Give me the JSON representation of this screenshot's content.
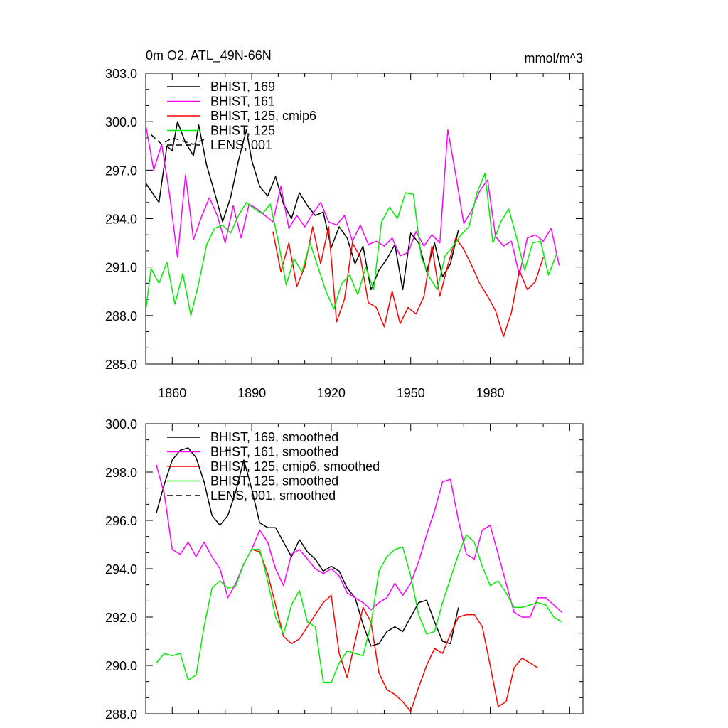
{
  "chart_data": [
    {
      "type": "line",
      "title": "0m O2, ATL_49N-66N",
      "units": "mmol/m^3",
      "ylim": [
        285,
        303
      ],
      "yticks": [
        "303.0",
        "300.0",
        "297.0",
        "294.0",
        "291.0",
        "288.0",
        "285.0"
      ],
      "ytick_values": [
        303,
        300,
        297,
        294,
        291,
        288,
        285
      ],
      "xlim": [
        1850,
        2015
      ],
      "xticks": [
        "1860",
        "1890",
        "1920",
        "1950",
        "1980"
      ],
      "xtick_values": [
        1860,
        1890,
        1920,
        1950,
        1980
      ],
      "legend": [
        {
          "label": "BHIST, 169",
          "color": "#000000",
          "dash": "solid"
        },
        {
          "label": "BHIST, 161",
          "color": "#ff00ff",
          "dash": "solid"
        },
        {
          "label": "BHIST, 125, cmip6",
          "color": "#ff0000",
          "dash": "solid"
        },
        {
          "label": "BHIST, 125",
          "color": "#00ee00",
          "dash": "solid"
        },
        {
          "label": "LENS, 001",
          "color": "#000000",
          "dash": "dashed"
        }
      ],
      "series": [
        {
          "name": "BHIST, 169",
          "color": "#000000",
          "x": [
            1850,
            1855,
            1858,
            1860,
            1862,
            1865,
            1868,
            1870,
            1873,
            1876,
            1879,
            1882,
            1885,
            1888,
            1890,
            1893,
            1896,
            1899,
            1902,
            1905,
            1908,
            1911,
            1914,
            1917,
            1920,
            1923,
            1926,
            1929,
            1932,
            1935,
            1938,
            1941,
            1944,
            1947,
            1950,
            1953,
            1956,
            1959,
            1962,
            1965,
            1968
          ],
          "y": [
            296.2,
            295.0,
            298.5,
            298.2,
            300.0,
            298.7,
            297.9,
            299.8,
            297.3,
            295.6,
            293.8,
            295.3,
            297.6,
            299.5,
            297.6,
            296.0,
            295.4,
            296.6,
            294.9,
            294.0,
            295.6,
            294.8,
            294.2,
            294.4,
            292.2,
            293.5,
            292.8,
            291.2,
            292.3,
            289.6,
            290.8,
            291.5,
            292.4,
            289.6,
            293.1,
            292.5,
            290.7,
            292.5,
            290.4,
            291.2,
            293.3
          ]
        },
        {
          "name": "BHIST, 161",
          "color": "#ff00ff",
          "x": [
            1850,
            1853,
            1856,
            1859,
            1862,
            1865,
            1868,
            1871,
            1874,
            1877,
            1880,
            1883,
            1886,
            1889,
            1892,
            1895,
            1898,
            1901,
            1904,
            1907,
            1910,
            1913,
            1916,
            1919,
            1922,
            1925,
            1928,
            1931,
            1934,
            1937,
            1940,
            1943,
            1946,
            1949,
            1952,
            1955,
            1958,
            1961,
            1964,
            1967,
            1970,
            1973,
            1976,
            1979,
            1982,
            1985,
            1988,
            1991,
            1994,
            1997,
            2000,
            2003,
            2006
          ],
          "y": [
            299.8,
            297.0,
            298.6,
            295.5,
            291.6,
            296.7,
            292.7,
            294.1,
            295.3,
            294.2,
            292.5,
            294.8,
            292.8,
            294.9,
            294.6,
            294.2,
            293.8,
            296.0,
            293.4,
            294.2,
            293.5,
            294.3,
            295.0,
            293.8,
            293.6,
            294.2,
            292.6,
            293.6,
            292.4,
            292.6,
            292.3,
            292.8,
            291.7,
            291.9,
            293.2,
            292.3,
            293.0,
            292.5,
            299.5,
            296.7,
            293.7,
            294.5,
            295.7,
            296.4,
            292.9,
            292.3,
            292.6,
            290.5,
            292.8,
            293.0,
            292.6,
            293.4,
            291.1
          ]
        },
        {
          "name": "BHIST, 125, cmip6",
          "color": "#ff0000",
          "x": [
            1898,
            1901,
            1904,
            1907,
            1910,
            1913,
            1916,
            1919,
            1922,
            1925,
            1928,
            1931,
            1934,
            1937,
            1940,
            1943,
            1946,
            1949,
            1952,
            1955,
            1958,
            1961,
            1964,
            1967,
            1970,
            1973,
            1976,
            1979,
            1982,
            1985,
            1988,
            1991,
            1994,
            1997,
            2000
          ],
          "y": [
            293.2,
            290.7,
            292.5,
            289.8,
            291.0,
            293.5,
            291.2,
            293.5,
            287.6,
            289.0,
            292.5,
            291.6,
            288.8,
            288.5,
            287.3,
            289.5,
            287.5,
            288.5,
            288.1,
            289.2,
            292.3,
            289.2,
            291.1,
            292.8,
            292.1,
            291.1,
            290.0,
            289.2,
            288.3,
            286.7,
            288.2,
            290.8,
            289.6,
            290.1,
            291.6
          ]
        },
        {
          "name": "BHIST, 125",
          "color": "#00ee00",
          "x": [
            1850,
            1852,
            1855,
            1858,
            1861,
            1864,
            1867,
            1870,
            1873,
            1876,
            1879,
            1882,
            1885,
            1888,
            1891,
            1894,
            1897,
            1900,
            1903,
            1906,
            1909,
            1912,
            1915,
            1918,
            1921,
            1924,
            1927,
            1930,
            1933,
            1936,
            1939,
            1942,
            1945,
            1948,
            1951,
            1954,
            1957,
            1960,
            1963,
            1966,
            1969,
            1972,
            1975,
            1978,
            1981,
            1984,
            1987,
            1990,
            1993,
            1996,
            1999,
            2002,
            2005
          ],
          "y": [
            288.3,
            290.9,
            290.0,
            291.3,
            288.7,
            290.6,
            288.0,
            290.0,
            292.4,
            293.4,
            293.6,
            293.1,
            294.2,
            295.0,
            294.6,
            294.3,
            294.9,
            292.6,
            289.9,
            291.5,
            290.7,
            292.5,
            291.0,
            289.5,
            288.4,
            290.0,
            290.5,
            289.3,
            291.0,
            289.6,
            293.8,
            294.7,
            294.0,
            295.6,
            295.5,
            291.6,
            290.4,
            289.6,
            291.7,
            292.3,
            293.0,
            293.5,
            295.6,
            296.8,
            292.5,
            293.8,
            294.6,
            292.8,
            290.8,
            292.5,
            292.6,
            290.5,
            291.8
          ]
        },
        {
          "name": "LENS, 001",
          "color": "#000000",
          "dash": "dashed",
          "x": [
            1852,
            1856,
            1860,
            1864,
            1868,
            1872
          ],
          "y": [
            299.2,
            298.6,
            299.0,
            298.8,
            298.6,
            298.9
          ]
        }
      ]
    },
    {
      "type": "line",
      "ylim": [
        288,
        300
      ],
      "yticks": [
        "300.0",
        "298.0",
        "296.0",
        "294.0",
        "292.0",
        "290.0",
        "288.0"
      ],
      "ytick_values": [
        300,
        298,
        296,
        294,
        292,
        290,
        288
      ],
      "xlim": [
        1850,
        2015
      ],
      "legend": [
        {
          "label": "BHIST, 169, smoothed",
          "color": "#000000",
          "dash": "solid"
        },
        {
          "label": "BHIST, 161, smoothed",
          "color": "#ff00ff",
          "dash": "solid"
        },
        {
          "label": "BHIST, 125, cmip6, smoothed",
          "color": "#ff0000",
          "dash": "solid"
        },
        {
          "label": "BHIST, 125, smoothed",
          "color": "#00ee00",
          "dash": "solid"
        },
        {
          "label": "LENS, 001, smoothed",
          "color": "#000000",
          "dash": "dashed"
        }
      ],
      "series": [
        {
          "name": "BHIST, 169, smoothed",
          "color": "#000000",
          "x": [
            1854,
            1857,
            1860,
            1863,
            1866,
            1869,
            1872,
            1875,
            1878,
            1881,
            1884,
            1887,
            1890,
            1893,
            1896,
            1899,
            1902,
            1905,
            1908,
            1911,
            1914,
            1917,
            1920,
            1923,
            1926,
            1929,
            1932,
            1935,
            1938,
            1941,
            1944,
            1947,
            1950,
            1953,
            1956,
            1959,
            1962,
            1965,
            1968
          ],
          "y": [
            296.3,
            297.5,
            298.5,
            298.9,
            299.0,
            298.6,
            297.6,
            296.2,
            295.8,
            296.2,
            297.2,
            298.5,
            297.3,
            295.9,
            295.7,
            295.7,
            295.1,
            294.5,
            295.2,
            294.7,
            294.4,
            293.9,
            294.1,
            293.9,
            293.2,
            292.8,
            291.7,
            290.8,
            290.9,
            291.4,
            291.6,
            291.4,
            292.0,
            292.6,
            292.7,
            291.8,
            291.0,
            290.9,
            292.4
          ]
        },
        {
          "name": "BHIST, 161, smoothed",
          "color": "#ff00ff",
          "x": [
            1854,
            1857,
            1860,
            1863,
            1866,
            1869,
            1872,
            1875,
            1878,
            1881,
            1884,
            1887,
            1890,
            1893,
            1896,
            1899,
            1902,
            1905,
            1908,
            1911,
            1914,
            1917,
            1920,
            1923,
            1926,
            1929,
            1932,
            1935,
            1938,
            1941,
            1944,
            1947,
            1950,
            1953,
            1956,
            1959,
            1962,
            1965,
            1968,
            1971,
            1974,
            1977,
            1980,
            1983,
            1986,
            1989,
            1992,
            1995,
            1998,
            2001,
            2004,
            2007
          ],
          "y": [
            298.3,
            297.1,
            294.8,
            294.6,
            295.1,
            294.5,
            295.1,
            294.5,
            294.0,
            292.8,
            293.4,
            294.2,
            294.8,
            295.6,
            295.1,
            294.0,
            293.3,
            294.6,
            294.8,
            294.4,
            294.0,
            293.8,
            294.0,
            293.7,
            293.0,
            292.8,
            292.6,
            292.3,
            292.6,
            292.8,
            293.4,
            292.9,
            293.4,
            294.3,
            295.4,
            296.4,
            297.6,
            297.7,
            296.0,
            294.6,
            294.4,
            295.6,
            295.8,
            294.6,
            293.4,
            292.2,
            292.0,
            292.0,
            292.8,
            292.8,
            292.5,
            292.2
          ]
        },
        {
          "name": "BHIST, 125, cmip6, smoothed",
          "color": "#ff0000",
          "x": [
            1890,
            1893,
            1896,
            1899,
            1902,
            1905,
            1908,
            1911,
            1914,
            1917,
            1920,
            1923,
            1926,
            1929,
            1932,
            1935,
            1938,
            1941,
            1944,
            1947,
            1950,
            1953,
            1956,
            1959,
            1962,
            1965,
            1968,
            1971,
            1974,
            1977,
            1980,
            1983,
            1986,
            1989,
            1992,
            1995,
            1998
          ],
          "y": [
            294.8,
            294.7,
            293.8,
            292.5,
            291.2,
            290.9,
            291.1,
            291.6,
            292.1,
            292.6,
            292.9,
            290.5,
            289.5,
            291.0,
            292.4,
            291.8,
            289.7,
            289.0,
            288.8,
            288.5,
            288.1,
            289.1,
            290.0,
            290.7,
            290.5,
            291.3,
            292.0,
            292.1,
            292.1,
            291.6,
            290.0,
            288.3,
            288.5,
            289.9,
            290.3,
            290.1,
            289.9
          ]
        },
        {
          "name": "BHIST, 125, smoothed",
          "color": "#00ee00",
          "x": [
            1854,
            1857,
            1860,
            1863,
            1866,
            1869,
            1872,
            1875,
            1878,
            1881,
            1884,
            1887,
            1890,
            1893,
            1896,
            1899,
            1902,
            1905,
            1908,
            1911,
            1914,
            1917,
            1920,
            1923,
            1926,
            1929,
            1932,
            1935,
            1938,
            1941,
            1944,
            1947,
            1950,
            1953,
            1956,
            1959,
            1962,
            1965,
            1968,
            1971,
            1974,
            1977,
            1980,
            1983,
            1986,
            1989,
            1992,
            1995,
            1998,
            2001,
            2004,
            2007
          ],
          "y": [
            290.1,
            290.5,
            290.4,
            290.5,
            289.4,
            289.6,
            291.6,
            293.2,
            293.5,
            293.2,
            293.3,
            294.2,
            294.8,
            294.8,
            293.5,
            292.0,
            291.3,
            292.5,
            293.1,
            291.8,
            291.6,
            289.3,
            289.3,
            290.1,
            290.6,
            290.5,
            290.4,
            291.7,
            293.9,
            294.5,
            294.8,
            294.9,
            293.7,
            292.1,
            291.3,
            291.4,
            292.6,
            293.6,
            294.6,
            295.4,
            295.1,
            294.1,
            293.3,
            293.5,
            293.0,
            292.4,
            292.4,
            292.5,
            292.6,
            292.5,
            292.0,
            291.8
          ]
        },
        {
          "name": "LENS, 001, smoothed",
          "color": "#000000",
          "dash": "dashed",
          "x": [
            1880,
            1883,
            1886
          ],
          "y": [
            298.9,
            298.9,
            298.8
          ]
        }
      ]
    }
  ]
}
